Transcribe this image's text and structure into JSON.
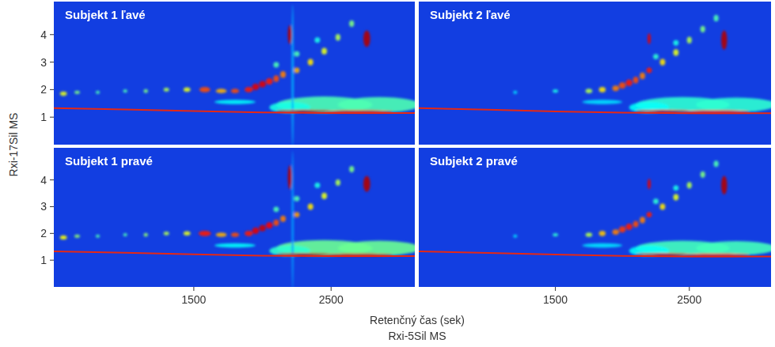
{
  "chart_data": {
    "type": "contour",
    "x_label": "Retenčný čas (sek)",
    "x_column": "Rxi-5Sil MS",
    "y_label": "Rxi-17Sil MS",
    "xlim": [
      480,
      3110
    ],
    "xticks": [
      1500,
      2500
    ],
    "ylim": [
      0,
      5.2
    ],
    "yticks": [
      1,
      2,
      3,
      4
    ],
    "panels": [
      {
        "title": "Subjekt 1 ľavé",
        "bleed": {
          "x": [
            480,
            1000,
            1500,
            2000,
            2500,
            3110
          ],
          "y": [
            1.33,
            1.28,
            1.22,
            1.17,
            1.15,
            1.15
          ]
        },
        "peaks": {
          "x": [
            2450,
            2850,
            2200,
            1800,
            2220,
            2300,
            2700,
            550,
            650,
            800,
            1000,
            1150,
            1300,
            1450,
            1580,
            1700,
            1800,
            1900,
            1950,
            2000,
            2050,
            2100,
            2150,
            2250,
            2350,
            2450,
            2550,
            2650,
            2100,
            2250,
            2400,
            2200,
            2760
          ],
          "y": [
            1.45,
            1.45,
            1.35,
            1.55,
            2.5,
            1.22,
            1.2,
            1.85,
            1.9,
            1.9,
            1.95,
            1.95,
            2.0,
            2.0,
            2.0,
            1.95,
            1.95,
            2.0,
            2.1,
            2.2,
            2.3,
            2.4,
            2.55,
            2.7,
            3.0,
            3.4,
            3.9,
            4.4,
            2.9,
            3.3,
            3.8,
            4.0,
            3.85
          ],
          "intensity": [
            0.45,
            0.45,
            0.4,
            0.38,
            0.3,
            0.95,
            0.9,
            0.6,
            0.5,
            0.45,
            0.45,
            0.5,
            0.55,
            0.6,
            0.8,
            0.7,
            0.8,
            0.85,
            0.9,
            0.9,
            0.85,
            0.8,
            0.75,
            0.7,
            0.65,
            0.6,
            0.55,
            0.5,
            0.45,
            0.45,
            0.4,
            0.95,
            0.95
          ],
          "sx": [
            350,
            300,
            150,
            150,
            8,
            200,
            250,
            25,
            20,
            15,
            15,
            15,
            20,
            25,
            40,
            40,
            30,
            30,
            25,
            25,
            25,
            20,
            20,
            20,
            20,
            20,
            18,
            18,
            20,
            20,
            20,
            15,
            25
          ],
          "sy": [
            0.3,
            0.28,
            0.2,
            0.08,
            2.6,
            0.05,
            0.05,
            0.08,
            0.06,
            0.06,
            0.06,
            0.07,
            0.07,
            0.08,
            0.1,
            0.08,
            0.08,
            0.1,
            0.12,
            0.12,
            0.12,
            0.12,
            0.12,
            0.1,
            0.12,
            0.12,
            0.12,
            0.12,
            0.1,
            0.1,
            0.1,
            0.35,
            0.3
          ]
        }
      },
      {
        "title": "Subjekt 2 ľavé",
        "bleed": {
          "x": [
            480,
            1000,
            1500,
            2000,
            2500,
            3110
          ],
          "y": [
            1.33,
            1.27,
            1.21,
            1.16,
            1.14,
            1.14
          ]
        },
        "peaks": {
          "x": [
            2450,
            2850,
            2200,
            1850,
            2300,
            2700,
            1200,
            1500,
            1750,
            1850,
            1950,
            2000,
            2050,
            2100,
            2150,
            2200,
            2300,
            2400,
            2500,
            2600,
            2700,
            2250,
            2400,
            2200,
            2760
          ],
          "y": [
            1.45,
            1.45,
            1.35,
            1.55,
            1.22,
            1.2,
            1.9,
            1.95,
            1.95,
            2.0,
            2.05,
            2.15,
            2.25,
            2.35,
            2.5,
            2.7,
            3.0,
            3.35,
            3.8,
            4.2,
            4.6,
            3.2,
            3.7,
            3.85,
            3.8
          ],
          "intensity": [
            0.42,
            0.42,
            0.38,
            0.35,
            0.92,
            0.88,
            0.35,
            0.4,
            0.55,
            0.65,
            0.75,
            0.8,
            0.85,
            0.8,
            0.75,
            0.85,
            0.65,
            0.6,
            0.55,
            0.5,
            0.45,
            0.42,
            0.4,
            0.9,
            0.95
          ],
          "sx": [
            350,
            300,
            150,
            150,
            200,
            250,
            15,
            20,
            25,
            25,
            25,
            25,
            25,
            20,
            20,
            20,
            20,
            20,
            18,
            18,
            18,
            20,
            20,
            12,
            22
          ],
          "sy": [
            0.28,
            0.26,
            0.2,
            0.08,
            0.05,
            0.05,
            0.06,
            0.06,
            0.08,
            0.1,
            0.1,
            0.12,
            0.12,
            0.12,
            0.12,
            0.1,
            0.12,
            0.12,
            0.12,
            0.12,
            0.12,
            0.1,
            0.1,
            0.2,
            0.35
          ]
        }
      },
      {
        "title": "Subjekt 1 pravé",
        "bleed": {
          "x": [
            480,
            1000,
            1500,
            2000,
            2500,
            3110
          ],
          "y": [
            1.33,
            1.28,
            1.22,
            1.17,
            1.15,
            1.15
          ]
        },
        "peaks": {
          "x": [
            2450,
            2850,
            2200,
            1800,
            2220,
            2300,
            2700,
            550,
            650,
            800,
            1000,
            1150,
            1300,
            1450,
            1580,
            1700,
            1800,
            1900,
            1950,
            2000,
            2050,
            2100,
            2150,
            2250,
            2350,
            2450,
            2550,
            2650,
            2100,
            2250,
            2400,
            2200,
            2760
          ],
          "y": [
            1.45,
            1.45,
            1.35,
            1.55,
            2.5,
            1.22,
            1.2,
            1.85,
            1.9,
            1.9,
            1.95,
            1.95,
            2.0,
            2.0,
            2.0,
            1.95,
            1.95,
            2.0,
            2.1,
            2.2,
            2.3,
            2.4,
            2.55,
            2.7,
            3.0,
            3.4,
            3.9,
            4.4,
            2.9,
            3.3,
            3.8,
            4.1,
            3.85
          ],
          "intensity": [
            0.48,
            0.48,
            0.42,
            0.38,
            0.28,
            0.95,
            0.92,
            0.62,
            0.52,
            0.45,
            0.45,
            0.52,
            0.55,
            0.6,
            0.85,
            0.7,
            0.8,
            0.85,
            0.9,
            0.92,
            0.88,
            0.8,
            0.75,
            0.72,
            0.65,
            0.6,
            0.55,
            0.5,
            0.45,
            0.45,
            0.4,
            0.95,
            0.95
          ],
          "sx": [
            350,
            300,
            150,
            150,
            8,
            200,
            250,
            25,
            20,
            15,
            15,
            15,
            20,
            25,
            45,
            40,
            30,
            30,
            25,
            25,
            25,
            20,
            20,
            20,
            20,
            20,
            18,
            18,
            20,
            20,
            20,
            15,
            25
          ],
          "sy": [
            0.3,
            0.28,
            0.2,
            0.08,
            2.6,
            0.05,
            0.05,
            0.08,
            0.06,
            0.06,
            0.06,
            0.07,
            0.07,
            0.08,
            0.1,
            0.08,
            0.08,
            0.1,
            0.12,
            0.12,
            0.12,
            0.12,
            0.12,
            0.1,
            0.12,
            0.12,
            0.12,
            0.12,
            0.1,
            0.1,
            0.1,
            0.45,
            0.3
          ]
        }
      },
      {
        "title": "Subjekt 2 pravé",
        "bleed": {
          "x": [
            480,
            1000,
            1500,
            2000,
            2500,
            3110
          ],
          "y": [
            1.33,
            1.27,
            1.21,
            1.16,
            1.14,
            1.14
          ]
        },
        "peaks": {
          "x": [
            2450,
            2850,
            2200,
            1850,
            2300,
            2700,
            1200,
            1500,
            1750,
            1850,
            1950,
            2000,
            2050,
            2100,
            2150,
            2200,
            2300,
            2400,
            2500,
            2600,
            2700,
            2250,
            2400,
            2200,
            2760
          ],
          "y": [
            1.45,
            1.45,
            1.35,
            1.55,
            1.22,
            1.2,
            1.9,
            1.95,
            1.95,
            2.0,
            2.05,
            2.15,
            2.25,
            2.35,
            2.5,
            2.7,
            3.0,
            3.35,
            3.8,
            4.2,
            4.6,
            3.2,
            3.7,
            3.85,
            3.8
          ],
          "intensity": [
            0.44,
            0.44,
            0.38,
            0.35,
            0.92,
            0.88,
            0.35,
            0.42,
            0.55,
            0.68,
            0.75,
            0.82,
            0.85,
            0.8,
            0.75,
            0.85,
            0.65,
            0.6,
            0.55,
            0.5,
            0.45,
            0.42,
            0.4,
            0.9,
            0.95
          ],
          "sx": [
            350,
            300,
            150,
            150,
            200,
            250,
            15,
            20,
            25,
            25,
            25,
            25,
            25,
            20,
            20,
            20,
            20,
            20,
            18,
            18,
            18,
            20,
            20,
            12,
            22
          ],
          "sy": [
            0.28,
            0.26,
            0.2,
            0.08,
            0.05,
            0.05,
            0.06,
            0.06,
            0.08,
            0.1,
            0.1,
            0.12,
            0.12,
            0.12,
            0.12,
            0.1,
            0.12,
            0.12,
            0.12,
            0.12,
            0.12,
            0.1,
            0.1,
            0.2,
            0.35
          ]
        }
      }
    ]
  }
}
